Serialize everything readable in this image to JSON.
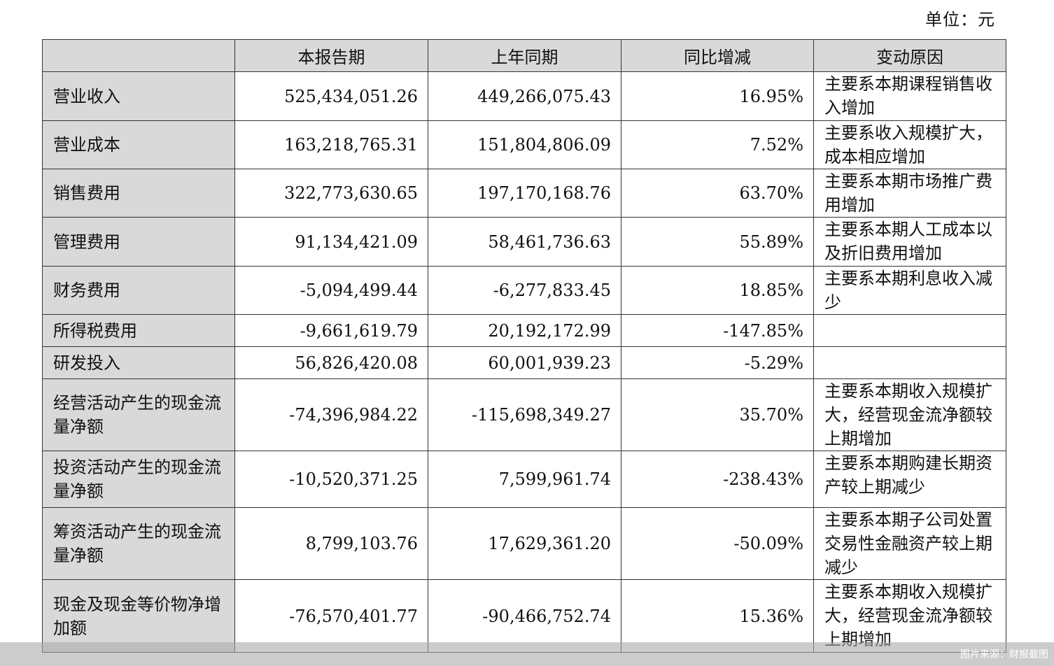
{
  "unit_label": "单位：元",
  "headers": [
    "",
    "本报告期",
    "上年同期",
    "同比增减",
    "变动原因"
  ],
  "rows": [
    {
      "item": "营业收入",
      "current": "525,434,051.26",
      "prior": "449,266,075.43",
      "change": "16.95%",
      "reason": "主要系本期课程销售收入增加"
    },
    {
      "item": "营业成本",
      "current": "163,218,765.31",
      "prior": "151,804,806.09",
      "change": "7.52%",
      "reason": "主要系收入规模扩大，成本相应增加"
    },
    {
      "item": "销售费用",
      "current": "322,773,630.65",
      "prior": "197,170,168.76",
      "change": "63.70%",
      "reason": "主要系本期市场推广费用增加"
    },
    {
      "item": "管理费用",
      "current": "91,134,421.09",
      "prior": "58,461,736.63",
      "change": "55.89%",
      "reason": "主要系本期人工成本以及折旧费用增加"
    },
    {
      "item": "财务费用",
      "current": "-5,094,499.44",
      "prior": "-6,277,833.45",
      "change": "18.85%",
      "reason": "主要系本期利息收入减少"
    },
    {
      "item": "所得税费用",
      "current": "-9,661,619.79",
      "prior": "20,192,172.99",
      "change": "-147.85%",
      "reason": ""
    },
    {
      "item": "研发投入",
      "current": "56,826,420.08",
      "prior": "60,001,939.23",
      "change": "-5.29%",
      "reason": ""
    },
    {
      "item": "经营活动产生的现金流量净额",
      "current": "-74,396,984.22",
      "prior": "-115,698,349.27",
      "change": "35.70%",
      "reason": "主要系本期收入规模扩大，经营现金流净额较上期增加"
    },
    {
      "item": "投资活动产生的现金流量净额",
      "current": "-10,520,371.25",
      "prior": "7,599,961.74",
      "change": "-238.43%",
      "reason": "主要系本期购建长期资产较上期减少"
    },
    {
      "item": "筹资活动产生的现金流量净额",
      "current": "8,799,103.76",
      "prior": "17,629,361.20",
      "change": "-50.09%",
      "reason": "主要系本期子公司处置交易性金融资产较上期减少"
    },
    {
      "item": "现金及现金等价物净增加额",
      "current": "-76,570,401.77",
      "prior": "-90,466,752.74",
      "change": "15.36%",
      "reason": "主要系本期收入规模扩大，经营现金流净额较上期增加"
    }
  ],
  "watermark": "图片来源：财报截图"
}
